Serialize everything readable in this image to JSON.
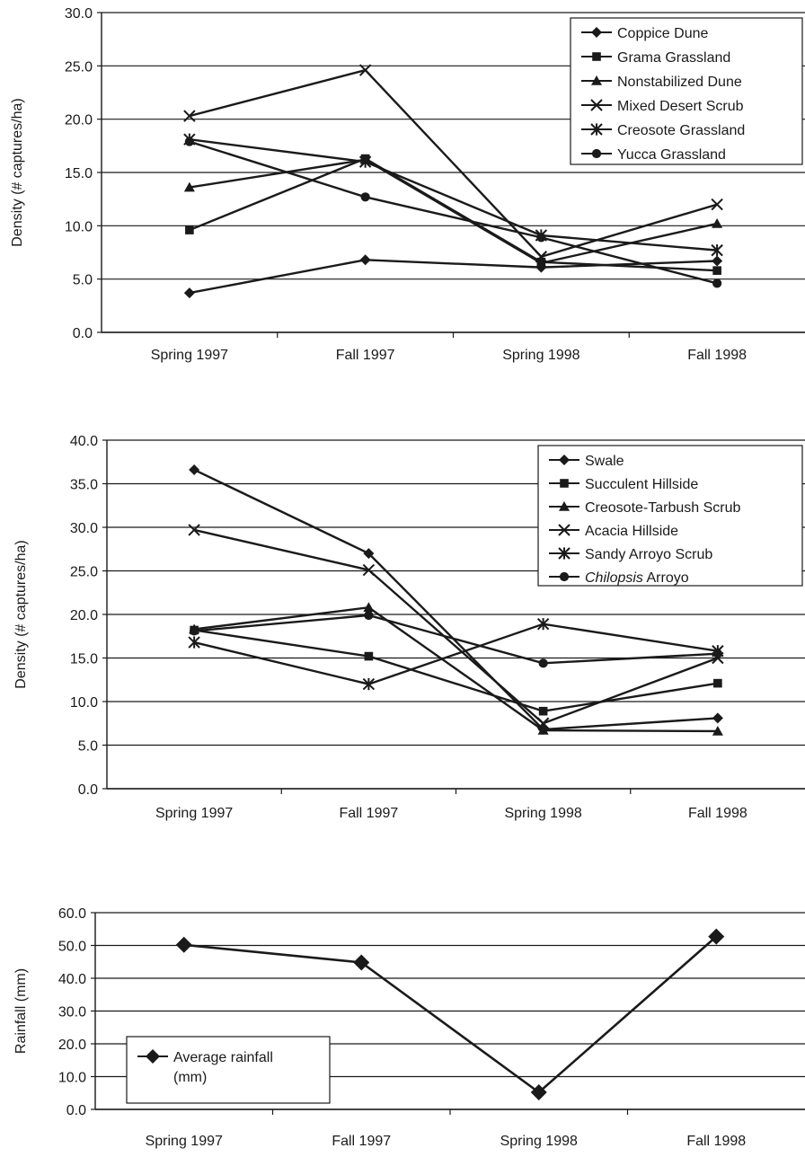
{
  "chart_data": [
    {
      "type": "line",
      "title": "",
      "xlabel": "",
      "ylabel": "Density (# captures/ha)",
      "categories": [
        "Spring 1997",
        "Fall 1997",
        "Spring 1998",
        "Fall 1998"
      ],
      "ylim": [
        0,
        30
      ],
      "yticks": [
        "0.0",
        "5.0",
        "10.0",
        "15.0",
        "20.0",
        "25.0",
        "30.0"
      ],
      "grid": true,
      "legend_position": "top-right",
      "series": [
        {
          "name": "Coppice Dune",
          "marker": "diamond",
          "values": [
            3.7,
            6.8,
            6.1,
            6.7
          ]
        },
        {
          "name": "Grama Grassland",
          "marker": "square",
          "values": [
            9.6,
            16.3,
            6.6,
            5.8
          ]
        },
        {
          "name": "Nonstabilized Dune",
          "marker": "triangle",
          "values": [
            13.6,
            16.2,
            6.5,
            10.2
          ]
        },
        {
          "name": "Mixed Desert Scrub",
          "marker": "x",
          "values": [
            20.3,
            24.6,
            7.1,
            12.0
          ]
        },
        {
          "name": "Creosote Grassland",
          "marker": "star",
          "values": [
            18.1,
            16.0,
            9.1,
            7.7
          ]
        },
        {
          "name": "Yucca Grassland",
          "marker": "circle",
          "values": [
            17.9,
            12.7,
            8.9,
            4.6
          ]
        }
      ]
    },
    {
      "type": "line",
      "title": "",
      "xlabel": "",
      "ylabel": "Density (# captures/ha)",
      "categories": [
        "Spring 1997",
        "Fall 1997",
        "Spring 1998",
        "Fall 1998"
      ],
      "ylim": [
        0,
        40
      ],
      "yticks": [
        "0.0",
        "5.0",
        "10.0",
        "15.0",
        "20.0",
        "25.0",
        "30.0",
        "35.0",
        "40.0"
      ],
      "grid": true,
      "legend_position": "top-right",
      "series": [
        {
          "name": "Swale",
          "marker": "diamond",
          "values": [
            36.6,
            27.0,
            6.8,
            8.1
          ]
        },
        {
          "name": "Succulent Hillside",
          "marker": "square",
          "values": [
            18.2,
            15.2,
            8.9,
            12.1
          ]
        },
        {
          "name": "Creosote-Tarbush Scrub",
          "marker": "triangle",
          "values": [
            18.3,
            20.8,
            6.7,
            6.6
          ]
        },
        {
          "name": "Acacia Hillside",
          "marker": "x",
          "values": [
            29.7,
            25.1,
            7.5,
            15.0
          ]
        },
        {
          "name": "Sandy Arroyo Scrub",
          "marker": "star",
          "values": [
            16.8,
            12.0,
            18.9,
            15.8
          ]
        },
        {
          "name": "Chilopsis Arroyo",
          "marker": "circle",
          "values": [
            18.1,
            19.9,
            14.4,
            15.5
          ]
        }
      ],
      "legend_italic_prefix": [
        "",
        "",
        "",
        "",
        "",
        "Chilopsis"
      ],
      "legend_rest": [
        "Swale",
        "Succulent Hillside",
        "Creosote-Tarbush Scrub",
        "Acacia Hillside",
        "Sandy Arroyo Scrub",
        " Arroyo"
      ]
    },
    {
      "type": "line",
      "title": "",
      "xlabel": "",
      "ylabel": "Rainfall (mm)",
      "categories": [
        "Spring 1997",
        "Fall 1997",
        "Spring 1998",
        "Fall 1998"
      ],
      "ylim": [
        0,
        60
      ],
      "yticks": [
        "0.0",
        "10.0",
        "20.0",
        "30.0",
        "40.0",
        "50.0",
        "60.0"
      ],
      "grid": true,
      "legend_position": "bottom-left",
      "series": [
        {
          "name": "Average rainfall (mm)",
          "marker": "diamond",
          "values": [
            50.2,
            44.8,
            5.2,
            52.7
          ]
        }
      ],
      "legend_lines": [
        "Average rainfall",
        "(mm)"
      ]
    }
  ]
}
